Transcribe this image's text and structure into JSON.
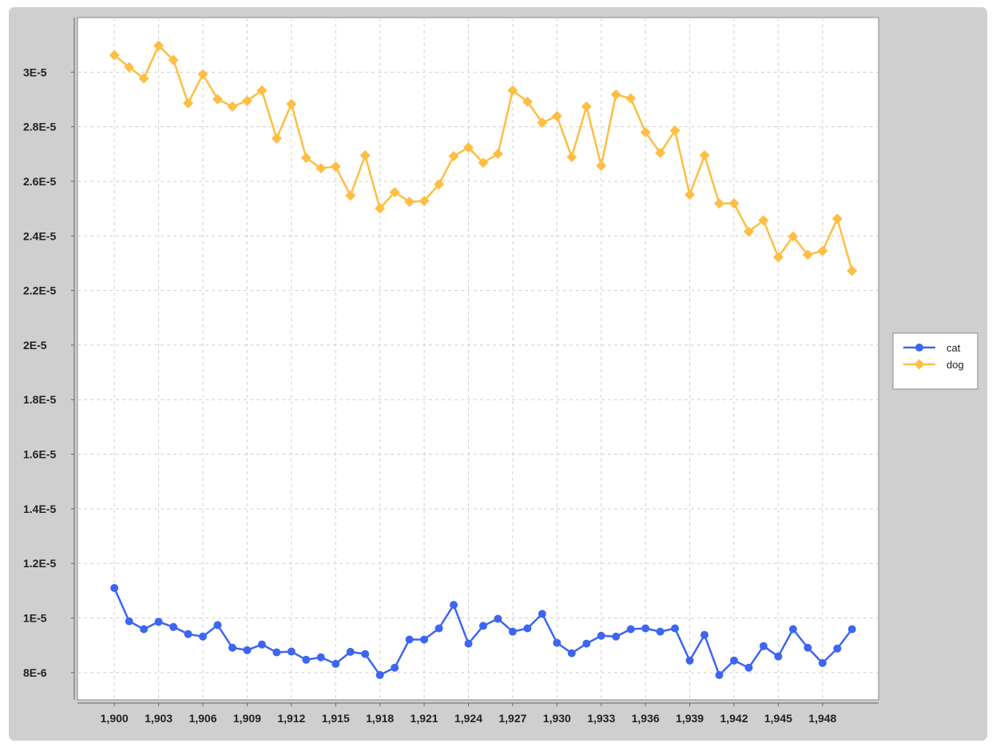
{
  "chart_data": {
    "type": "line",
    "title": "",
    "xlabel": "",
    "ylabel": "",
    "xlim": [
      1897.5,
      1951.8
    ],
    "ylim": [
      7e-06,
      3.2e-05
    ],
    "grid": true,
    "legend_position": "right",
    "x_ticks": [
      1900,
      1903,
      1906,
      1909,
      1912,
      1915,
      1918,
      1921,
      1924,
      1927,
      1930,
      1933,
      1936,
      1939,
      1942,
      1945,
      1948
    ],
    "x_tick_labels": [
      "1,900",
      "1,903",
      "1,906",
      "1,909",
      "1,912",
      "1,915",
      "1,918",
      "1,921",
      "1,924",
      "1,927",
      "1,930",
      "1,933",
      "1,936",
      "1,939",
      "1,942",
      "1,945",
      "1,948"
    ],
    "y_ticks": [
      8e-06,
      1e-05,
      1.2e-05,
      1.4e-05,
      1.6e-05,
      1.8e-05,
      2e-05,
      2.2e-05,
      2.4e-05,
      2.6e-05,
      2.8e-05,
      3e-05
    ],
    "y_tick_labels": [
      "8E-6",
      "1E-5",
      "1.2E-5",
      "1.4E-5",
      "1.6E-5",
      "1.8E-5",
      "2E-5",
      "2.2E-5",
      "2.4E-5",
      "2.6E-5",
      "2.8E-5",
      "3E-5"
    ],
    "x": [
      1900,
      1901,
      1902,
      1903,
      1904,
      1905,
      1906,
      1907,
      1908,
      1909,
      1910,
      1911,
      1912,
      1913,
      1914,
      1915,
      1916,
      1917,
      1918,
      1919,
      1920,
      1921,
      1922,
      1923,
      1924,
      1925,
      1926,
      1927,
      1928,
      1929,
      1930,
      1931,
      1932,
      1933,
      1934,
      1935,
      1936,
      1937,
      1938,
      1939,
      1940,
      1941,
      1942,
      1943,
      1944,
      1945,
      1946,
      1947,
      1948,
      1949,
      1950
    ],
    "series": [
      {
        "name": "cat",
        "color": "#3d66f0",
        "marker": "circle",
        "values": [
          1.11e-05,
          9.88e-06,
          9.59e-06,
          9.86e-06,
          9.67e-06,
          9.41e-06,
          9.32e-06,
          9.74e-06,
          8.91e-06,
          8.82e-06,
          9.03e-06,
          8.74e-06,
          8.77e-06,
          8.47e-06,
          8.56e-06,
          8.32e-06,
          8.76e-06,
          8.68e-06,
          7.91e-06,
          8.18e-06,
          9.21e-06,
          9.21e-06,
          9.62e-06,
          1.048e-05,
          9.06e-06,
          9.71e-06,
          9.97e-06,
          9.5e-06,
          9.62e-06,
          1.015e-05,
          9.09e-06,
          8.71e-06,
          9.06e-06,
          9.35e-06,
          9.32e-06,
          9.59e-06,
          9.62e-06,
          9.5e-06,
          9.62e-06,
          8.44e-06,
          9.38e-06,
          7.91e-06,
          8.44e-06,
          8.18e-06,
          8.97e-06,
          8.59e-06,
          9.59e-06,
          8.91e-06,
          8.35e-06,
          8.88e-06,
          9.59e-06
        ]
      },
      {
        "name": "dog",
        "color": "#fdbe43",
        "marker": "diamond",
        "values": [
          3.062e-05,
          3.018e-05,
          2.977e-05,
          3.097e-05,
          3.045e-05,
          2.886e-05,
          2.992e-05,
          2.901e-05,
          2.874e-05,
          2.895e-05,
          2.933e-05,
          2.757e-05,
          2.883e-05,
          2.686e-05,
          2.648e-05,
          2.654e-05,
          2.548e-05,
          2.695e-05,
          2.501e-05,
          2.56e-05,
          2.525e-05,
          2.528e-05,
          2.589e-05,
          2.692e-05,
          2.724e-05,
          2.668e-05,
          2.701e-05,
          2.933e-05,
          2.892e-05,
          2.815e-05,
          2.839e-05,
          2.689e-05,
          2.874e-05,
          2.657e-05,
          2.918e-05,
          2.904e-05,
          2.78e-05,
          2.704e-05,
          2.786e-05,
          2.551e-05,
          2.695e-05,
          2.519e-05,
          2.519e-05,
          2.416e-05,
          2.457e-05,
          2.322e-05,
          2.398e-05,
          2.331e-05,
          2.345e-05,
          2.463e-05,
          2.272e-05
        ]
      }
    ]
  }
}
